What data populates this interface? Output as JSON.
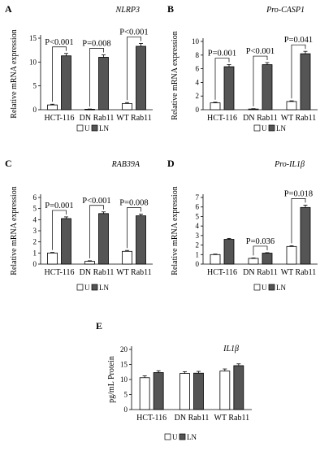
{
  "colors": {
    "unstimulated": "#ffffff",
    "ligand": "#555555",
    "stroke": "#000000",
    "error": "#000000"
  },
  "chart_data": [
    {
      "panel": "A",
      "type": "bar",
      "title": "NLRP3",
      "ylabel": "Relative mRNA expression",
      "ylim": [
        0,
        15
      ],
      "yticks": [
        0,
        5,
        10,
        15
      ],
      "categories": [
        "HCT-116",
        "DN Rab11",
        "WT Rab11"
      ],
      "series": [
        {
          "name": "U",
          "values": [
            1.0,
            0.1,
            1.3
          ],
          "errors": [
            0.15,
            0.05,
            0.2
          ]
        },
        {
          "name": "LN",
          "values": [
            11.3,
            11.0,
            13.3
          ],
          "errors": [
            0.5,
            0.5,
            0.6
          ]
        }
      ],
      "pvalues": [
        "P<0.001",
        "P=0.008",
        "P<0.001"
      ],
      "legend": [
        "U",
        "LN"
      ]
    },
    {
      "panel": "B",
      "type": "bar",
      "title": "Pro-CASP1",
      "ylabel": "Relative mRNA expression",
      "ylim": [
        0,
        10
      ],
      "yticks": [
        0,
        2,
        4,
        6,
        8,
        10
      ],
      "categories": [
        "HCT-116",
        "DN Rab11",
        "WT Rab11"
      ],
      "series": [
        {
          "name": "U",
          "values": [
            1.0,
            0.1,
            1.2
          ],
          "errors": [
            0.1,
            0.05,
            0.1
          ]
        },
        {
          "name": "LN",
          "values": [
            6.3,
            6.6,
            8.2
          ],
          "errors": [
            0.3,
            0.3,
            0.35
          ]
        }
      ],
      "pvalues": [
        "P=0.001",
        "P<0.001",
        "P=0.041"
      ],
      "legend": [
        "U",
        "LN"
      ]
    },
    {
      "panel": "C",
      "type": "bar",
      "title": "RAB39A",
      "ylabel": "Relative mRNA expression",
      "ylim": [
        0,
        6
      ],
      "yticks": [
        0,
        1,
        2,
        3,
        4,
        5,
        6
      ],
      "categories": [
        "HCT-116",
        "DN Rab11",
        "WT Rab11"
      ],
      "series": [
        {
          "name": "U",
          "values": [
            1.0,
            0.25,
            1.15
          ],
          "errors": [
            0.05,
            0.05,
            0.08
          ]
        },
        {
          "name": "LN",
          "values": [
            4.1,
            4.55,
            4.35
          ],
          "errors": [
            0.15,
            0.15,
            0.15
          ]
        }
      ],
      "pvalues": [
        "P=0.001",
        "P<0.001",
        "P=0.008"
      ],
      "legend": [
        "U",
        "LN"
      ]
    },
    {
      "panel": "D",
      "type": "bar",
      "title": "Pro-IL1β",
      "ylabel": "Relative mRNA expression",
      "ylim": [
        0,
        7
      ],
      "yticks": [
        0,
        1,
        2,
        3,
        4,
        5,
        6,
        7
      ],
      "categories": [
        "HCT-116",
        "DN Rab11",
        "WT Rab11"
      ],
      "series": [
        {
          "name": "U",
          "values": [
            1.0,
            0.6,
            1.85
          ],
          "errors": [
            0.05,
            0.05,
            0.08
          ]
        },
        {
          "name": "LN",
          "values": [
            2.6,
            1.15,
            5.95
          ],
          "errors": [
            0.1,
            0.05,
            0.25
          ]
        }
      ],
      "pvalues": [
        "",
        "P=0.036",
        "P=0.018"
      ],
      "legend": [
        "U",
        "LN"
      ]
    },
    {
      "panel": "E",
      "type": "bar",
      "title": "IL1β",
      "ylabel": "pg/mL Protein",
      "ylim": [
        0,
        20
      ],
      "yticks": [
        0,
        5,
        10,
        15,
        20
      ],
      "categories": [
        "HCT-116",
        "DN Rab11",
        "WT Rab11"
      ],
      "series": [
        {
          "name": "U",
          "values": [
            10.6,
            12.0,
            12.8
          ],
          "errors": [
            0.6,
            0.6,
            0.7
          ]
        },
        {
          "name": "LN",
          "values": [
            12.3,
            12.1,
            14.6
          ],
          "errors": [
            0.6,
            0.6,
            0.6
          ]
        }
      ],
      "pvalues": [
        "",
        "",
        ""
      ],
      "legend": [
        "U",
        "LN"
      ]
    }
  ]
}
